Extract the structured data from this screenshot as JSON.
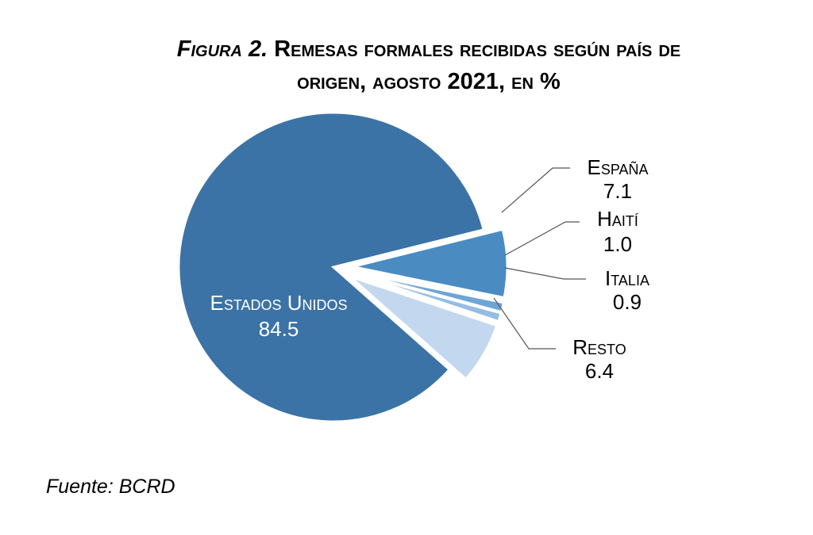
{
  "chart_data": {
    "type": "pie",
    "title_line1_prefix": "Figura 2.",
    "title_line1_rest": "Remesas formales recibidas según país de",
    "title_line2": "origen, agosto 2021, en %",
    "slices": [
      {
        "label": "España",
        "value": "7.1",
        "color": "#4a8cc2"
      },
      {
        "label": "Haití",
        "value": "1.0",
        "color": "#6fa5d6"
      },
      {
        "label": "Italia",
        "value": "0.9",
        "color": "#94bde4"
      },
      {
        "label": "Resto",
        "value": "6.4",
        "color": "#c3d8ee"
      },
      {
        "label": "Estados Unidos",
        "value": "84.5",
        "color": "#3c73a6"
      }
    ]
  },
  "source": "Fuente: BCRD"
}
